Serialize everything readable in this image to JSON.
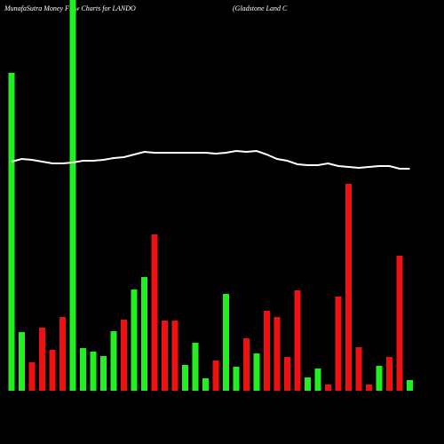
{
  "chart_data": {
    "type": "bar",
    "title": "MunafaSutra  Money Flow  Charts for LANDO",
    "subtitle": "(Gladstone   Land C",
    "categories": [
      null,
      null,
      null,
      null,
      null,
      null,
      null,
      null,
      null,
      null,
      null,
      null,
      null,
      null,
      null,
      null,
      null,
      null,
      null,
      null,
      null,
      null,
      null,
      null,
      null,
      null,
      null,
      null,
      null,
      null,
      null,
      null,
      null,
      null,
      null,
      null,
      null,
      null,
      null,
      null
    ],
    "values": [
      358,
      66,
      32,
      71,
      46,
      83,
      440,
      48,
      44,
      39,
      67,
      80,
      114,
      128,
      176,
      79,
      79,
      29,
      54,
      14,
      34,
      109,
      27,
      59,
      42,
      90,
      83,
      38,
      113,
      15,
      25,
      7,
      106,
      233,
      49,
      7,
      28,
      38,
      152,
      12
    ],
    "colors": [
      "#22ee22",
      "#22ee22",
      "#ee1111",
      "#ee1111",
      "#ee1111",
      "#ee1111",
      "#22ee22",
      "#22ee22",
      "#22ee22",
      "#22ee22",
      "#22ee22",
      "#ee1111",
      "#22ee22",
      "#22ee22",
      "#ee1111",
      "#ee1111",
      "#ee1111",
      "#22ee22",
      "#22ee22",
      "#22ee22",
      "#ee1111",
      "#22ee22",
      "#22ee22",
      "#ee1111",
      "#22ee22",
      "#ee1111",
      "#ee1111",
      "#ee1111",
      "#ee1111",
      "#22ee22",
      "#22ee22",
      "#ee1111",
      "#ee1111",
      "#ee1111",
      "#ee1111",
      "#ee1111",
      "#22ee22",
      "#ee1111",
      "#ee1111",
      "#22ee22"
    ],
    "line_color": "#ffffff",
    "line_values": [
      258,
      261,
      260,
      258,
      256,
      256,
      257,
      259,
      259,
      260,
      262,
      263,
      266,
      269,
      268,
      268,
      268,
      268,
      268,
      268,
      267,
      268,
      270,
      269,
      270,
      266,
      261,
      259,
      255,
      254,
      254,
      256,
      253,
      252,
      251,
      252,
      253,
      253,
      250,
      250
    ]
  }
}
